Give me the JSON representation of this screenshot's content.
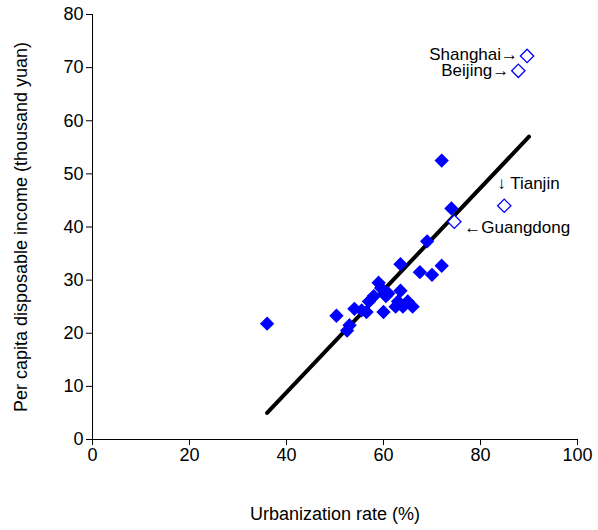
{
  "chart_data": {
    "type": "scatter",
    "x_label": "Urbanization rate (%)",
    "y_label": "Per capita disposable income (thousand yuan)",
    "x": [
      36,
      50.3,
      52.5,
      53,
      54,
      55.5,
      56.5,
      57,
      58,
      59,
      59.5,
      60,
      60.5,
      61,
      62.5,
      63,
      63.5,
      63.5,
      64,
      65,
      66,
      67.5,
      69,
      70,
      72,
      72,
      74
    ],
    "values": [
      21.8,
      23.3,
      20.5,
      21.5,
      24.6,
      24.3,
      24,
      26,
      27,
      29.5,
      28.5,
      24,
      27,
      27.5,
      25,
      26,
      33,
      28,
      25,
      26,
      25,
      31.5,
      37.3,
      31,
      32.7,
      52.5,
      43.5
    ],
    "color": "#0000ff",
    "marker": "diamond",
    "highlighted": {
      "marker": "open_diamond",
      "points": [
        {
          "label": "Shanghai→",
          "x": 89.6,
          "y": 72.2
        },
        {
          "label": "Beijing→",
          "x": 87.8,
          "y": 69.4
        },
        {
          "label": "↓ Tianjin",
          "x": 84.9,
          "y": 44.0
        },
        {
          "label": "←Guangdong",
          "x": 74.6,
          "y": 41.0
        }
      ]
    },
    "trend_line": {
      "x": [
        36,
        90
      ],
      "values": [
        5,
        57
      ],
      "color": "#000000"
    },
    "xlim": [
      0,
      100
    ],
    "xticks": [
      0,
      20,
      40,
      60,
      80,
      100
    ],
    "ylim": [
      0,
      80
    ],
    "yticks": [
      0,
      10,
      20,
      30,
      40,
      50,
      60,
      70,
      80
    ],
    "grid": false
  }
}
